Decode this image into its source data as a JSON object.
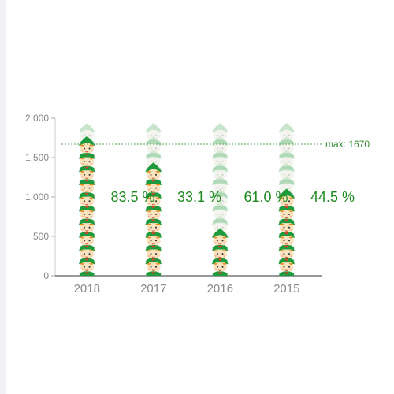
{
  "chart_data": {
    "type": "pictorial-bar",
    "categories": [
      "2018",
      "2017",
      "2016",
      "2015"
    ],
    "values": [
      1670,
      1394,
      553,
      1018
    ],
    "percent_labels": [
      "",
      "83.5 %",
      "33.1 %",
      "61.0 %"
    ],
    "extra_percent_label": "44.5 %",
    "ylim": [
      0,
      2000
    ],
    "yticks": [
      "0",
      "500",
      "1,000",
      "1,500",
      "2,000"
    ],
    "yticks_values": [
      0,
      500,
      1000,
      1500,
      2000
    ],
    "symbol_value": 167,
    "markline": {
      "value": 1670,
      "label": "max: 1670"
    },
    "grid": false
  },
  "colors": {
    "accent": "#1f8a1f",
    "hat": "#1e9b3c",
    "skin": "#fbe3c0",
    "hair": "#e88a1c",
    "axis": "#333333",
    "muted_label": "#888888"
  },
  "icon": "elf-icon"
}
